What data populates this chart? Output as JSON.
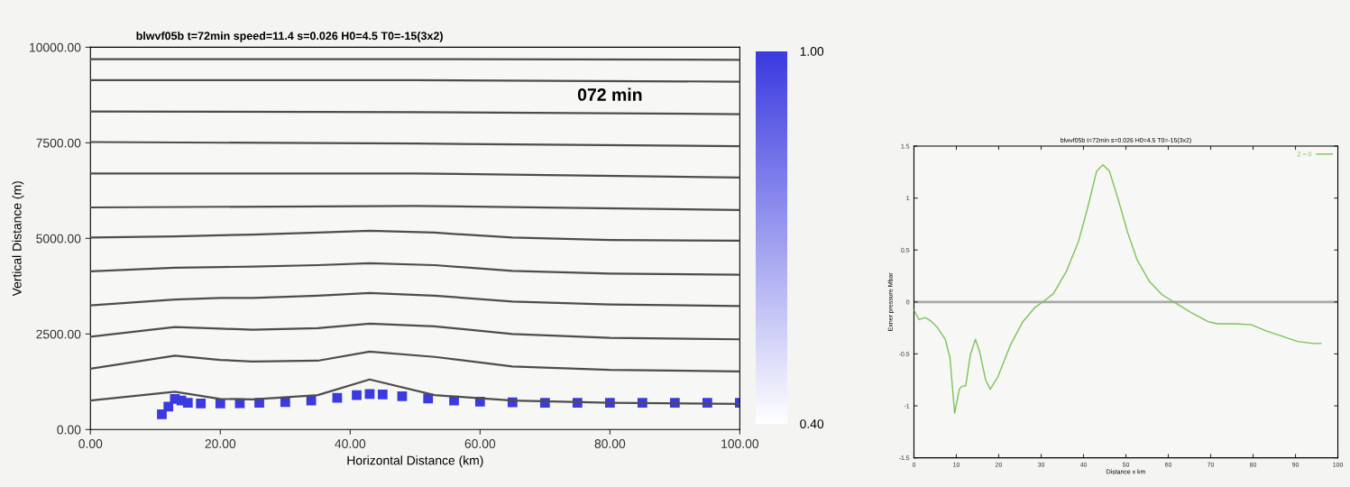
{
  "chart_data": [
    {
      "type": "line",
      "title": "blwvf05b t=72min speed=11.4 s=0.026 H0=4.5 T0=-15(3x2)",
      "xlabel": "Horizontal Distance (km)",
      "ylabel": "Vertical Distance (m)",
      "annotations": [
        "072 min"
      ],
      "xlim": [
        0,
        100
      ],
      "xticks": [
        {
          "value": 0,
          "label": "0.00"
        },
        {
          "value": 20,
          "label": "20.00"
        },
        {
          "value": 40,
          "label": "40.00"
        },
        {
          "value": 60,
          "label": "60.00"
        },
        {
          "value": 80,
          "label": "80.00"
        },
        {
          "value": 100,
          "label": "100.00"
        }
      ],
      "ylim": [
        0,
        10000
      ],
      "yticks": [
        {
          "value": 0,
          "label": "0.00"
        },
        {
          "value": 2500,
          "label": "2500.00"
        },
        {
          "value": 5000,
          "label": "5000.00"
        },
        {
          "value": 7500,
          "label": "7500.00"
        },
        {
          "value": 10000,
          "label": "10000.00"
        }
      ],
      "clim": [
        0.4,
        1.0
      ],
      "cticks": [
        {
          "value": 0.4,
          "label": "0.40"
        },
        {
          "value": 1.0,
          "label": "1.00"
        }
      ],
      "series": [
        {
          "color": "#4d4d4d",
          "x": [
            0,
            13,
            20,
            25,
            35,
            43,
            53,
            65,
            80,
            100
          ],
          "values": [
            760,
            990,
            800,
            790,
            900,
            1310,
            900,
            760,
            700,
            670
          ]
        },
        {
          "color": "#4d4d4d",
          "x": [
            0,
            13,
            20,
            25,
            35,
            43,
            53,
            65,
            80,
            100
          ],
          "values": [
            1590,
            1930,
            1820,
            1780,
            1800,
            2040,
            1900,
            1650,
            1560,
            1520
          ]
        },
        {
          "color": "#4d4d4d",
          "x": [
            0,
            13,
            20,
            25,
            35,
            43,
            53,
            65,
            80,
            100
          ],
          "values": [
            2430,
            2680,
            2640,
            2610,
            2650,
            2770,
            2700,
            2500,
            2400,
            2360
          ]
        },
        {
          "color": "#4d4d4d",
          "x": [
            0,
            13,
            20,
            25,
            35,
            43,
            53,
            65,
            80,
            100
          ],
          "values": [
            3250,
            3400,
            3440,
            3440,
            3500,
            3570,
            3500,
            3350,
            3270,
            3230
          ]
        },
        {
          "color": "#4d4d4d",
          "x": [
            0,
            13,
            20,
            25,
            35,
            43,
            53,
            65,
            80,
            100
          ],
          "values": [
            4140,
            4230,
            4250,
            4260,
            4300,
            4350,
            4300,
            4150,
            4080,
            4050
          ]
        },
        {
          "color": "#4d4d4d",
          "x": [
            0,
            13,
            20,
            25,
            35,
            43,
            53,
            65,
            80,
            100
          ],
          "values": [
            5020,
            5050,
            5080,
            5100,
            5150,
            5200,
            5150,
            5020,
            4960,
            4940
          ]
        },
        {
          "color": "#4d4d4d",
          "x": [
            0,
            50,
            100
          ],
          "values": [
            5810,
            5850,
            5740
          ]
        },
        {
          "color": "#4d4d4d",
          "x": [
            0,
            50,
            100
          ],
          "values": [
            6700,
            6700,
            6590
          ]
        },
        {
          "color": "#4d4d4d",
          "x": [
            0,
            50,
            100
          ],
          "values": [
            7520,
            7480,
            7410
          ]
        },
        {
          "color": "#4d4d4d",
          "x": [
            0,
            50,
            100
          ],
          "values": [
            8320,
            8300,
            8250
          ]
        },
        {
          "color": "#4d4d4d",
          "x": [
            0,
            50,
            100
          ],
          "values": [
            9140,
            9140,
            9100
          ]
        },
        {
          "color": "#4d4d4d",
          "x": [
            0,
            50,
            100
          ],
          "values": [
            9690,
            9690,
            9670
          ]
        },
        {
          "type": "scatter",
          "color": "#3a3ae0",
          "x": [
            11,
            12,
            13,
            14,
            15,
            17,
            20,
            23,
            26,
            30,
            34,
            38,
            41,
            43,
            45,
            48,
            52,
            56,
            60,
            65,
            70,
            75,
            80,
            85,
            90,
            95,
            100
          ],
          "values": [
            400,
            600,
            800,
            760,
            700,
            680,
            680,
            690,
            700,
            720,
            760,
            830,
            900,
            930,
            920,
            870,
            810,
            760,
            730,
            710,
            700,
            700,
            700,
            700,
            700,
            700,
            700
          ],
          "cvalues": [
            1.0,
            1.0,
            1.0,
            1.0,
            1.0,
            1.0,
            1.0,
            1.0,
            1.0,
            1.0,
            1.0,
            1.0,
            1.0,
            1.0,
            1.0,
            1.0,
            1.0,
            1.0,
            1.0,
            1.0,
            1.0,
            1.0,
            1.0,
            1.0,
            1.0,
            1.0,
            1.0
          ]
        }
      ]
    },
    {
      "type": "line",
      "title": "blwvf05b t=72min s=0.026 H0=4.5 T0=-15(3x2)",
      "xlabel": "Distance x km",
      "ylabel": "Exner pressure Mbar",
      "legend": "top right",
      "xlim": [
        0,
        100
      ],
      "xticks": [
        0,
        10,
        20,
        30,
        40,
        50,
        60,
        70,
        80,
        90,
        100
      ],
      "ylim": [
        -1.5,
        1.5
      ],
      "yticks": [
        -1.5,
        -1,
        -0.5,
        0,
        0.5,
        1,
        1.5
      ],
      "ref_lines": [
        {
          "axis": "y",
          "value": 0,
          "color": "#aaaaaa"
        }
      ],
      "series": [
        {
          "name": "Z = 0",
          "color": "#7cc257",
          "x": [
            0,
            1.2,
            2.7,
            4.2,
            5.6,
            7.4,
            8.5,
            9.6,
            10.7,
            11.4,
            12.2,
            13.3,
            14.5,
            15.5,
            16.9,
            18.0,
            19.8,
            22.7,
            25.7,
            28.6,
            30.4,
            32.9,
            35.9,
            38.8,
            41.0,
            43.1,
            44.6,
            46.1,
            48.3,
            50.4,
            52.6,
            55.5,
            58.5,
            62.1,
            65.7,
            69.4,
            71.6,
            76.0,
            79.6,
            83.2,
            86.9,
            90.5,
            94.2,
            96.0
          ],
          "values": [
            -0.08,
            -0.17,
            -0.15,
            -0.19,
            -0.25,
            -0.36,
            -0.54,
            -1.07,
            -0.84,
            -0.81,
            -0.81,
            -0.51,
            -0.36,
            -0.48,
            -0.75,
            -0.84,
            -0.72,
            -0.42,
            -0.19,
            -0.05,
            0,
            0.08,
            0.29,
            0.58,
            0.91,
            1.26,
            1.32,
            1.26,
            0.97,
            0.67,
            0.41,
            0.2,
            0.07,
            -0.02,
            -0.11,
            -0.19,
            -0.21,
            -0.21,
            -0.22,
            -0.28,
            -0.33,
            -0.38,
            -0.4,
            -0.4
          ]
        }
      ]
    }
  ]
}
